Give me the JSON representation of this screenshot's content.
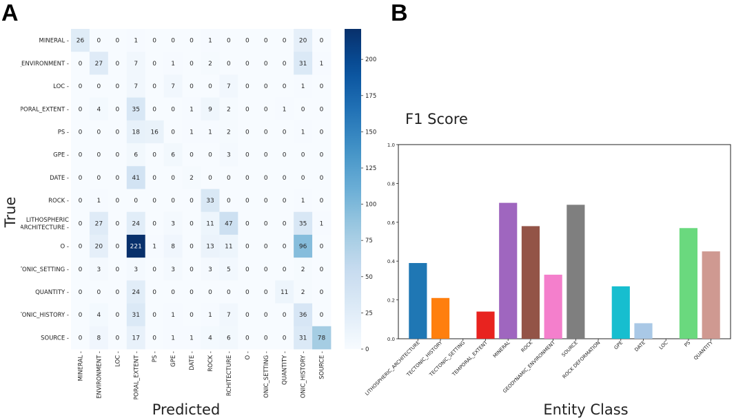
{
  "panels": {
    "left_letter": "A",
    "right_letter": "B"
  },
  "chart_data": [
    {
      "type": "heatmap",
      "ylabel": "True",
      "xlabel": "Predicted",
      "row_labels": [
        "MINERAL -",
        "C_ENVIRONMENT -",
        "LOC -",
        "MPORAL_EXTENT -",
        "PS -",
        "GPE -",
        "DATE -",
        "ROCK -",
        "LITHOSPHERIC\nARCHITECTURE -",
        "O -",
        "CTONIC_SETTING -",
        "QUANTITY -",
        "CTONIC_HISTORY -",
        "SOURCE -"
      ],
      "col_labels": [
        "MINERAL -",
        "ENVIRONMENT -",
        "LOC -",
        "PORAL_EXTENT -",
        "PS -",
        "GPE -",
        "DATE -",
        "ROCK -",
        "RCHITECTURE -",
        "O -",
        "ONIC_SETTING -",
        "QUANTITY -",
        "ONIC_HISTORY -",
        "SOURCE -"
      ],
      "matrix": [
        [
          26,
          0,
          0,
          1,
          0,
          0,
          0,
          1,
          0,
          0,
          0,
          0,
          20,
          0
        ],
        [
          0,
          27,
          0,
          7,
          0,
          1,
          0,
          2,
          0,
          0,
          0,
          0,
          31,
          1
        ],
        [
          0,
          0,
          0,
          7,
          0,
          7,
          0,
          0,
          7,
          0,
          0,
          0,
          1,
          0
        ],
        [
          0,
          4,
          0,
          35,
          0,
          0,
          1,
          9,
          2,
          0,
          0,
          1,
          0,
          0
        ],
        [
          0,
          0,
          0,
          18,
          16,
          0,
          1,
          1,
          2,
          0,
          0,
          0,
          1,
          0
        ],
        [
          0,
          0,
          0,
          6,
          0,
          6,
          0,
          0,
          3,
          0,
          0,
          0,
          0,
          0
        ],
        [
          0,
          0,
          0,
          41,
          0,
          0,
          2,
          0,
          0,
          0,
          0,
          0,
          0,
          0
        ],
        [
          0,
          1,
          0,
          0,
          0,
          0,
          0,
          33,
          0,
          0,
          0,
          0,
          1,
          0
        ],
        [
          0,
          27,
          0,
          24,
          0,
          3,
          0,
          11,
          47,
          0,
          0,
          0,
          35,
          1
        ],
        [
          0,
          20,
          0,
          221,
          1,
          8,
          0,
          13,
          11,
          0,
          0,
          0,
          96,
          0
        ],
        [
          0,
          3,
          0,
          3,
          0,
          3,
          0,
          3,
          5,
          0,
          0,
          0,
          2,
          0
        ],
        [
          0,
          0,
          0,
          24,
          0,
          0,
          0,
          0,
          0,
          0,
          0,
          11,
          2,
          0
        ],
        [
          0,
          4,
          0,
          31,
          0,
          1,
          0,
          1,
          7,
          0,
          0,
          0,
          36,
          0
        ],
        [
          0,
          8,
          0,
          17,
          0,
          1,
          1,
          4,
          6,
          0,
          0,
          0,
          31,
          78
        ]
      ],
      "colorbar": {
        "min": 0,
        "max": 221,
        "ticks": [
          0,
          25,
          50,
          75,
          100,
          125,
          150,
          175,
          200
        ]
      }
    },
    {
      "type": "bar",
      "title": "F1 Score",
      "xlabel": "Entity Class",
      "ylabel": "",
      "ylim": [
        0,
        1.0
      ],
      "yticks": [
        "0.0",
        "0.2",
        "0.4",
        "0.6",
        "0.8",
        "1.0"
      ],
      "categories": [
        "LITHOSPHERIC_ARCHITECTURE",
        "TECTONIC_HISTORY",
        "TECTONIC_SETTING",
        "TEMPORAL_EXTENT",
        "MINERAL",
        "ROCK",
        "GEODYNAMIC_ENVIRONMENT",
        "SOURCE",
        "ROCK DEFORMATION",
        "GPE",
        "DATE",
        "LOC",
        "PS",
        "QUANTITY"
      ],
      "values": [
        0.39,
        0.21,
        0.0,
        0.14,
        0.7,
        0.58,
        0.33,
        0.69,
        0.0,
        0.27,
        0.08,
        0.0,
        0.57,
        0.45
      ],
      "colors": [
        "#1f77b4",
        "#ff7f0e",
        "#2ca02c",
        "#e8231f",
        "#9f66bf",
        "#935447",
        "#f47fcc",
        "#7f7f7f",
        "#bcbd22",
        "#17becf",
        "#a9c8e6",
        "#ffbb78",
        "#6ad97e",
        "#cf9991"
      ]
    }
  ]
}
